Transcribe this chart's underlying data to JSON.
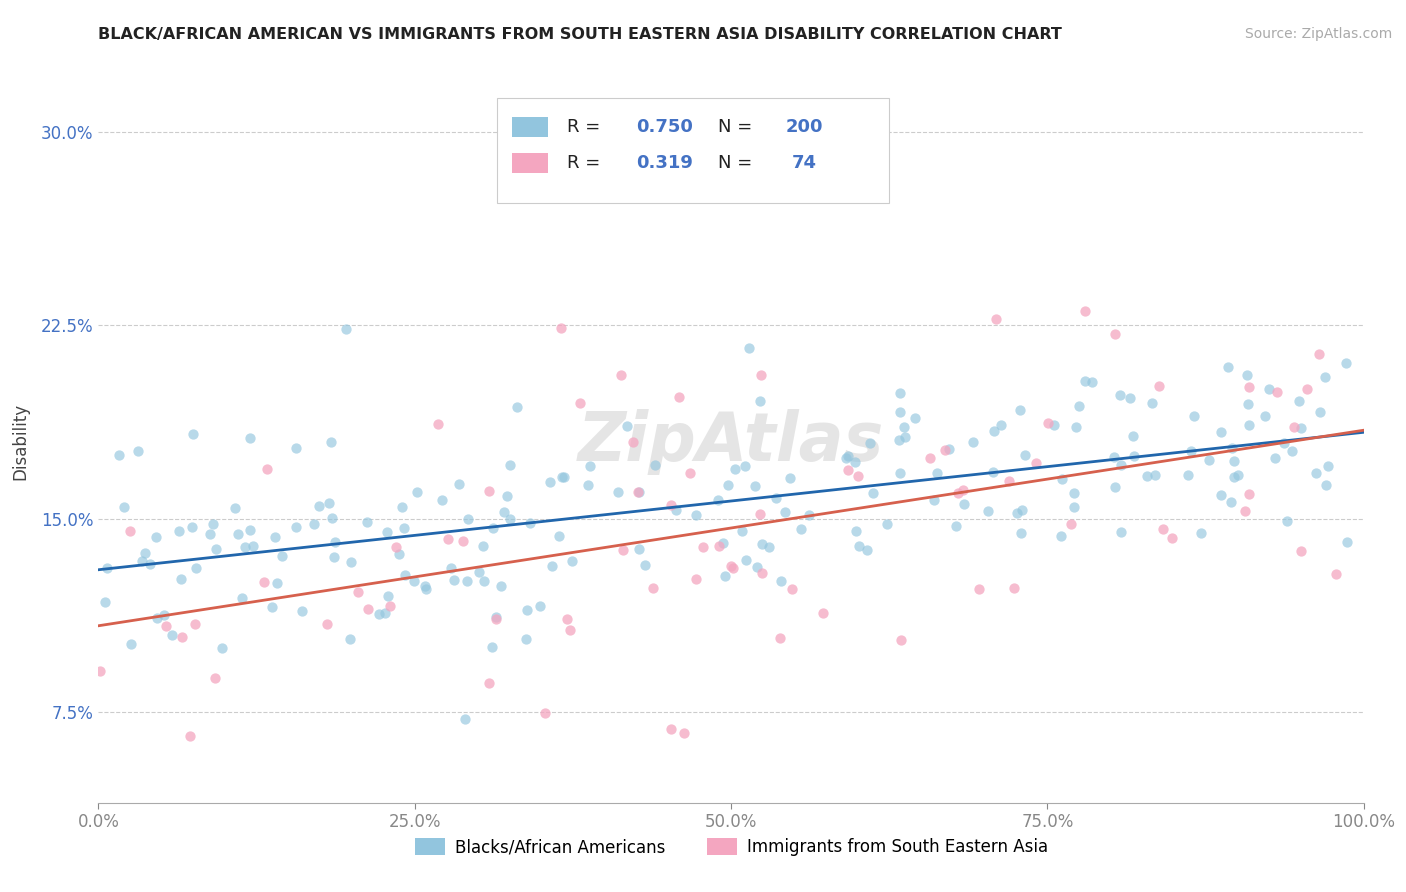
{
  "title": "BLACK/AFRICAN AMERICAN VS IMMIGRANTS FROM SOUTH EASTERN ASIA DISABILITY CORRELATION CHART",
  "source": "Source: ZipAtlas.com",
  "ylabel": "Disability",
  "watermark": "ZipAtlas",
  "blue_R": 0.75,
  "blue_N": 200,
  "pink_R": 0.319,
  "pink_N": 74,
  "xlim": [
    0.0,
    1.0
  ],
  "ylim": [
    0.04,
    0.32
  ],
  "xticks": [
    0.0,
    0.25,
    0.5,
    0.75,
    1.0
  ],
  "xticklabels": [
    "0.0%",
    "25.0%",
    "50.0%",
    "75.0%",
    "100.0%"
  ],
  "yticks": [
    0.075,
    0.15,
    0.225,
    0.3
  ],
  "yticklabels": [
    "7.5%",
    "15.0%",
    "22.5%",
    "30.0%"
  ],
  "blue_color": "#92c5de",
  "pink_color": "#f4a6c0",
  "blue_line_color": "#2166ac",
  "pink_line_color": "#d6604d",
  "legend_label_blue": "Blacks/African Americans",
  "legend_label_pink": "Immigrants from South Eastern Asia",
  "title_color": "#222222",
  "grid_color": "#cccccc",
  "background_color": "#ffffff",
  "blue_intercept": 0.128,
  "blue_slope": 0.055,
  "blue_noise": 0.022,
  "pink_intercept": 0.108,
  "pink_slope": 0.07,
  "pink_noise": 0.04
}
